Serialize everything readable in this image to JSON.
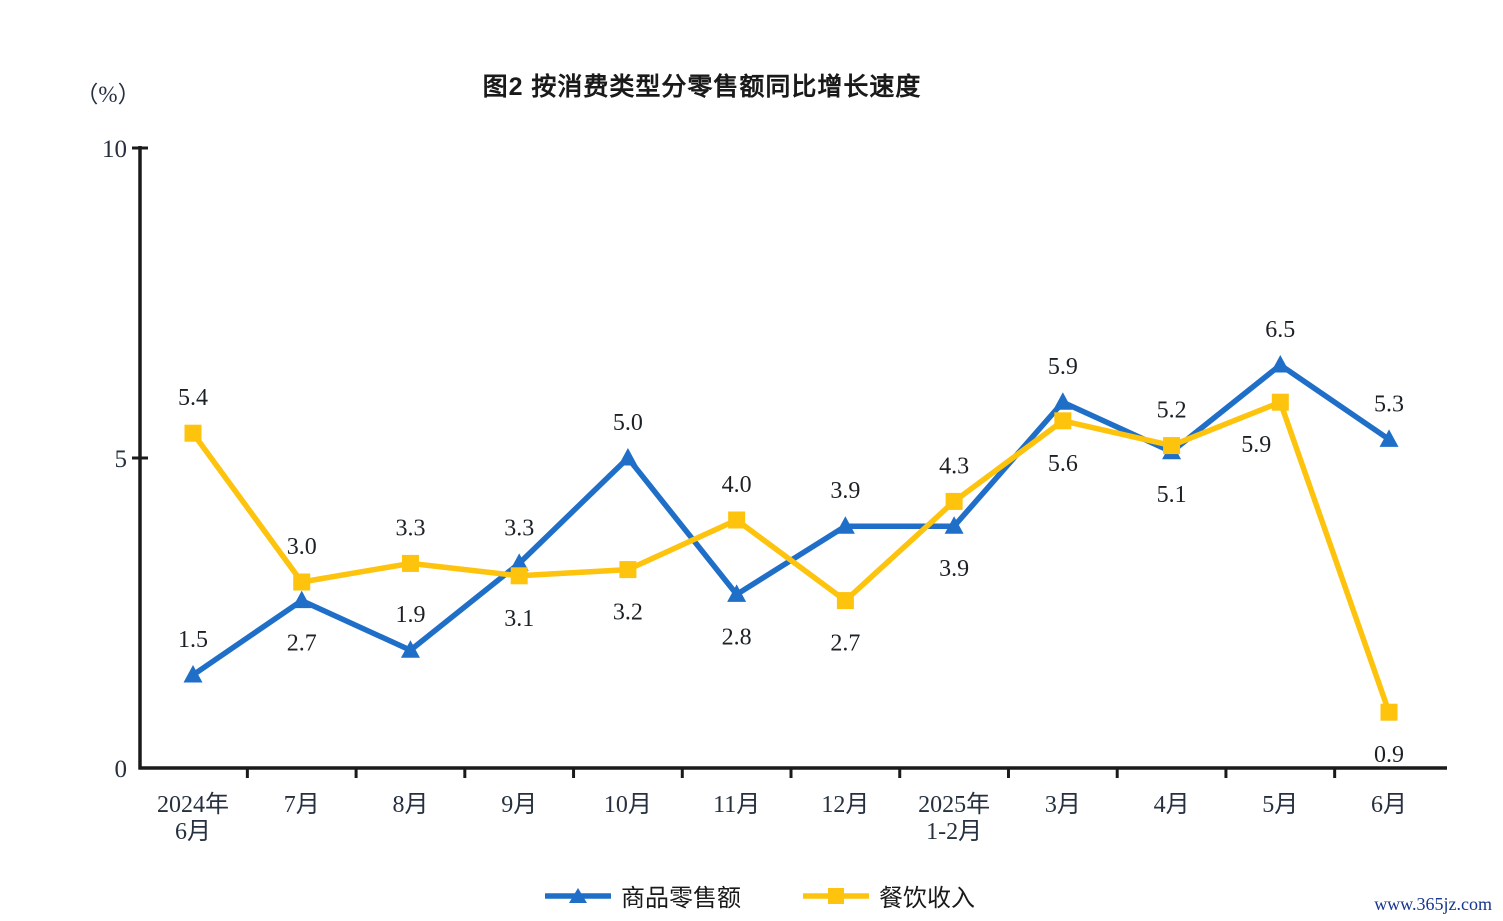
{
  "page": {
    "background": "#ffffff",
    "watermark": "www.365jz.com"
  },
  "chart_data": {
    "type": "line",
    "title": "图2  按消费类型分零售额同比增长速度",
    "unit_label": "（%）",
    "xlabel": "",
    "ylabel": "（%）",
    "ylim": [
      0,
      10
    ],
    "yticks": [
      0,
      5,
      10
    ],
    "grid": false,
    "legend_position": "bottom-center",
    "categories": [
      "2024年\n6月",
      "7月",
      "8月",
      "9月",
      "10月",
      "11月",
      "12月",
      "2025年\n1-2月",
      "3月",
      "4月",
      "5月",
      "6月"
    ],
    "series": [
      {
        "name": "商品零售额",
        "color": "#1f6fc8",
        "marker": "triangle",
        "values": [
          1.5,
          2.7,
          1.9,
          3.3,
          5.0,
          2.8,
          3.9,
          3.9,
          5.9,
          5.1,
          6.5,
          5.3
        ],
        "label_positions": [
          "above",
          "below",
          "above",
          "above",
          "above",
          "below",
          "above",
          "below",
          "above",
          "below",
          "above",
          "above"
        ]
      },
      {
        "name": "餐饮收入",
        "color": "#fdc30d",
        "marker": "square",
        "values": [
          5.4,
          3.0,
          3.3,
          3.1,
          3.2,
          4.0,
          2.7,
          4.3,
          5.6,
          5.2,
          5.9,
          0.9
        ],
        "label_positions": [
          "above",
          "above",
          "above",
          "below",
          "below",
          "above",
          "below",
          "above",
          "below",
          "above",
          "below-left",
          "below"
        ]
      }
    ],
    "colors": {
      "axis": "#1a1a1a",
      "data_label": "#1c2126",
      "tick_label": "#26303f",
      "watermark": "#16368f"
    }
  }
}
